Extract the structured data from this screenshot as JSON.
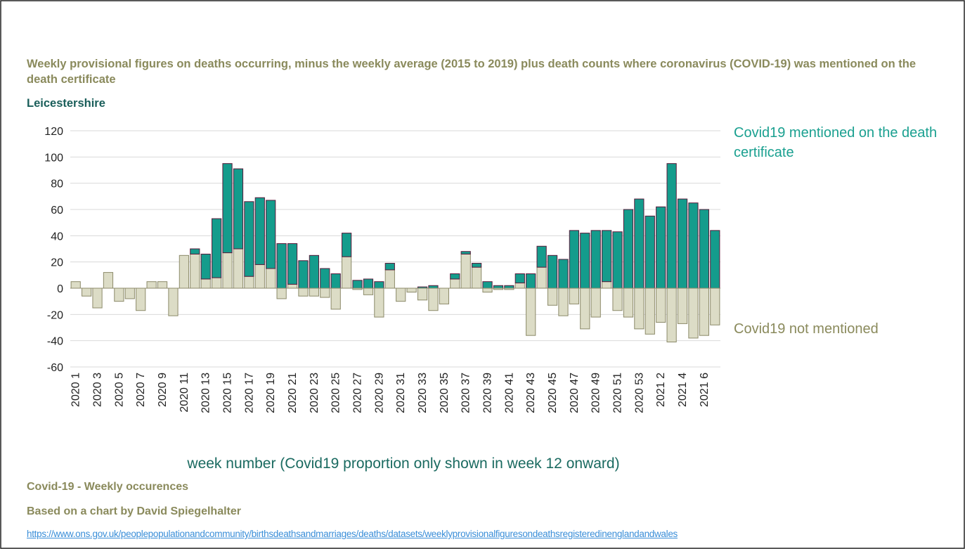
{
  "chart_data": {
    "type": "stacked_bar",
    "title": "Weekly provisional figures on deaths occurring, minus the weekly average (2015 to 2019) plus death counts where coronavirus (COVID-19) was mentioned on the death certificate",
    "subtitle": "Leicestershire",
    "x_label": "week number (Covid19 proportion only shown in week 12 onward)",
    "categories": [
      "2020 1",
      null,
      "2020 3",
      null,
      "2020 5",
      null,
      "2020 7",
      null,
      "2020 9",
      null,
      "2020 11",
      null,
      "2020 13",
      null,
      "2020 15",
      null,
      "2020 17",
      null,
      "2020 19",
      null,
      "2020 21",
      null,
      "2020 23",
      null,
      "2020 25",
      null,
      "2020 27",
      null,
      "2020 29",
      null,
      "2020 31",
      null,
      "2020 33",
      null,
      "2020 35",
      null,
      "2020 37",
      null,
      "2020 39",
      null,
      "2020 41",
      null,
      "2020 43",
      null,
      "2020 45",
      null,
      "2020 47",
      null,
      "2020 49",
      null,
      "2020 51",
      null,
      "2020 53",
      null,
      "2021 2",
      null,
      "2021 4",
      null,
      "2021 6",
      null
    ],
    "series": [
      {
        "name": "Covid19 not mentioned",
        "color": "#dcdcc6",
        "stroke": "#8c8a6a",
        "values": [
          5,
          -6,
          -15,
          12,
          -10,
          -8,
          -17,
          5,
          5,
          -21,
          25,
          26,
          7,
          8,
          27,
          30,
          9,
          18,
          15,
          -8,
          3,
          -6,
          -6,
          -7,
          -16,
          24,
          -1,
          -5,
          -22,
          14,
          -10,
          -3,
          -9,
          -17,
          -12,
          7,
          26,
          16,
          -3,
          -1,
          -1,
          4,
          -36,
          16,
          -13,
          -21,
          -12,
          -31,
          -22,
          5,
          -17,
          -22,
          -31,
          -35,
          -26,
          -41,
          -27,
          -38,
          -36,
          -28
        ]
      },
      {
        "name": "Covid19 mentioned on the death certificate",
        "color": "#149c8c",
        "stroke": "#5a1a3a",
        "values": [
          0,
          0,
          0,
          0,
          0,
          0,
          0,
          0,
          0,
          0,
          0,
          4,
          19,
          45,
          68,
          61,
          57,
          51,
          52,
          34,
          31,
          21,
          25,
          15,
          11,
          18,
          6,
          7,
          5,
          5,
          0,
          0,
          1,
          2,
          0,
          4,
          2,
          3,
          5,
          2,
          2,
          7,
          11,
          16,
          25,
          22,
          44,
          42,
          44,
          39,
          43,
          60,
          68,
          55,
          62,
          95,
          68,
          65,
          60,
          44
        ]
      }
    ],
    "ylim": [
      -60,
      120
    ],
    "yticks": [
      -60,
      -40,
      -20,
      0,
      20,
      40,
      60,
      80,
      100,
      120
    ],
    "grid": true
  },
  "footer": {
    "note": "Covid-19 - Weekly occurences",
    "credit": "Based on a chart by David Spiegelhalter",
    "link": "https://www.ons.gov.uk/peoplepopulationandcommunity/birthsdeathsandmarriages/deaths/datasets/weeklyprovisionalfiguresondeathsregisteredinenglandandwales"
  }
}
